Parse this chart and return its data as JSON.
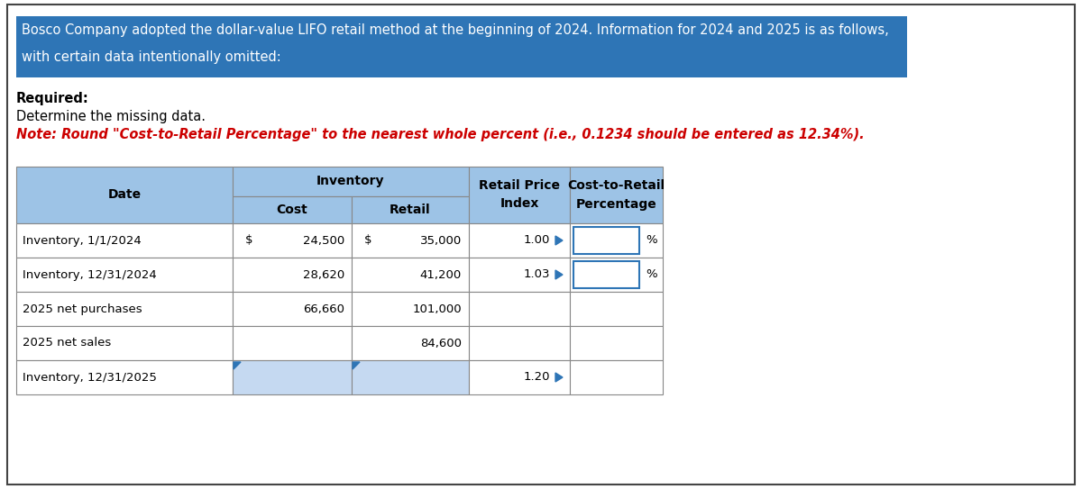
{
  "title_line1": "Bosco Company adopted the dollar-value LIFO retail method at the beginning of 2024. Information for 2024 and 2025 is as follows,",
  "title_line2": "with certain data intentionally omitted:",
  "title_bg": "#2E75B6",
  "title_color": "#FFFFFF",
  "required_label": "Required:",
  "required_sublabel": "Determine the missing data.",
  "note_text": "Note: Round \"Cost-to-Retail Percentage\" to the nearest whole percent (i.e., 0.1234 should be entered as 12.34%).",
  "note_color": "#CC0000",
  "header_bg": "#9DC3E6",
  "row_bg_white": "#FFFFFF",
  "input_blue_bg": "#C5D9F1",
  "col_header1": "Date",
  "col_header2": "Inventory",
  "col_header2a": "Cost",
  "col_header2b": "Retail",
  "col_header3": "Retail Price\nIndex",
  "col_header4": "Cost-to-Retail\nPercentage",
  "rows": [
    {
      "date": "Inventory, 1/1/2024",
      "cost_prefix": "$",
      "cost": "24,500",
      "retail_prefix": "$",
      "retail": "35,000",
      "index": "1.00",
      "has_pct_input": true,
      "has_cost_input": false,
      "has_retail_input": false
    },
    {
      "date": "Inventory, 12/31/2024",
      "cost_prefix": "",
      "cost": "28,620",
      "retail_prefix": "",
      "retail": "41,200",
      "index": "1.03",
      "has_pct_input": true,
      "has_cost_input": false,
      "has_retail_input": false
    },
    {
      "date": "2025 net purchases",
      "cost_prefix": "",
      "cost": "66,660",
      "retail_prefix": "",
      "retail": "101,000",
      "index": "",
      "has_pct_input": false,
      "has_cost_input": false,
      "has_retail_input": false
    },
    {
      "date": "2025 net sales",
      "cost_prefix": "",
      "cost": "",
      "retail_prefix": "",
      "retail": "84,600",
      "index": "",
      "has_pct_input": false,
      "has_cost_input": false,
      "has_retail_input": false
    },
    {
      "date": "Inventory, 12/31/2025",
      "cost_prefix": "",
      "cost": "",
      "retail_prefix": "",
      "retail": "",
      "index": "1.20",
      "has_pct_input": false,
      "has_cost_input": true,
      "has_retail_input": true
    }
  ],
  "fig_bg": "#FFFFFF",
  "outer_border_color": "#444444",
  "table_line_color": "#888888"
}
